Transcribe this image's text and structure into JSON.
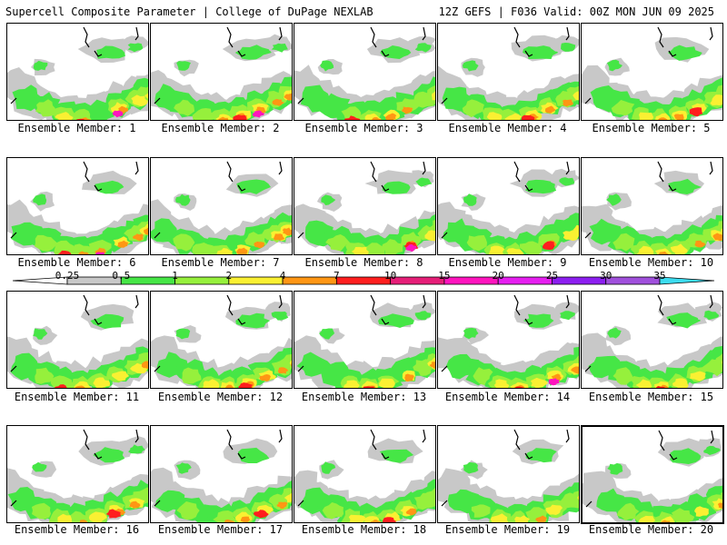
{
  "header": {
    "left": "Supercell Composite Parameter | College of DuPage NEXLAB",
    "right": "12Z GEFS | F036 Valid: 00Z MON JUN 09 2025"
  },
  "colorbar": {
    "labels": [
      "0.25",
      "0.5",
      "1",
      "2",
      "4",
      "7",
      "10",
      "15",
      "20",
      "25",
      "30",
      "35"
    ],
    "colors": [
      "#c8c8c8",
      "#46e646",
      "#96f03c",
      "#faf032",
      "#ff9614",
      "#ff1e1e",
      "#e61e78",
      "#ff14be",
      "#e61ef0",
      "#8c1ef0",
      "#a050dc",
      "#3cdcf0"
    ]
  },
  "panels": [
    {
      "label": "Ensemble Member: 1"
    },
    {
      "label": "Ensemble Member: 2"
    },
    {
      "label": "Ensemble Member: 3"
    },
    {
      "label": "Ensemble Member: 4"
    },
    {
      "label": "Ensemble Member: 5"
    },
    {
      "label": "Ensemble Member: 6"
    },
    {
      "label": "Ensemble Member: 7"
    },
    {
      "label": "Ensemble Member: 8"
    },
    {
      "label": "Ensemble Member: 9"
    },
    {
      "label": "Ensemble Member: 10"
    },
    {
      "label": "Ensemble Member: 11"
    },
    {
      "label": "Ensemble Member: 12"
    },
    {
      "label": "Ensemble Member: 13"
    },
    {
      "label": "Ensemble Member: 14"
    },
    {
      "label": "Ensemble Member: 15"
    },
    {
      "label": "Ensemble Member: 16"
    },
    {
      "label": "Ensemble Member: 17"
    },
    {
      "label": "Ensemble Member: 18"
    },
    {
      "label": "Ensemble Member: 19"
    },
    {
      "label": "Ensemble Member: 20",
      "selected": true
    }
  ]
}
